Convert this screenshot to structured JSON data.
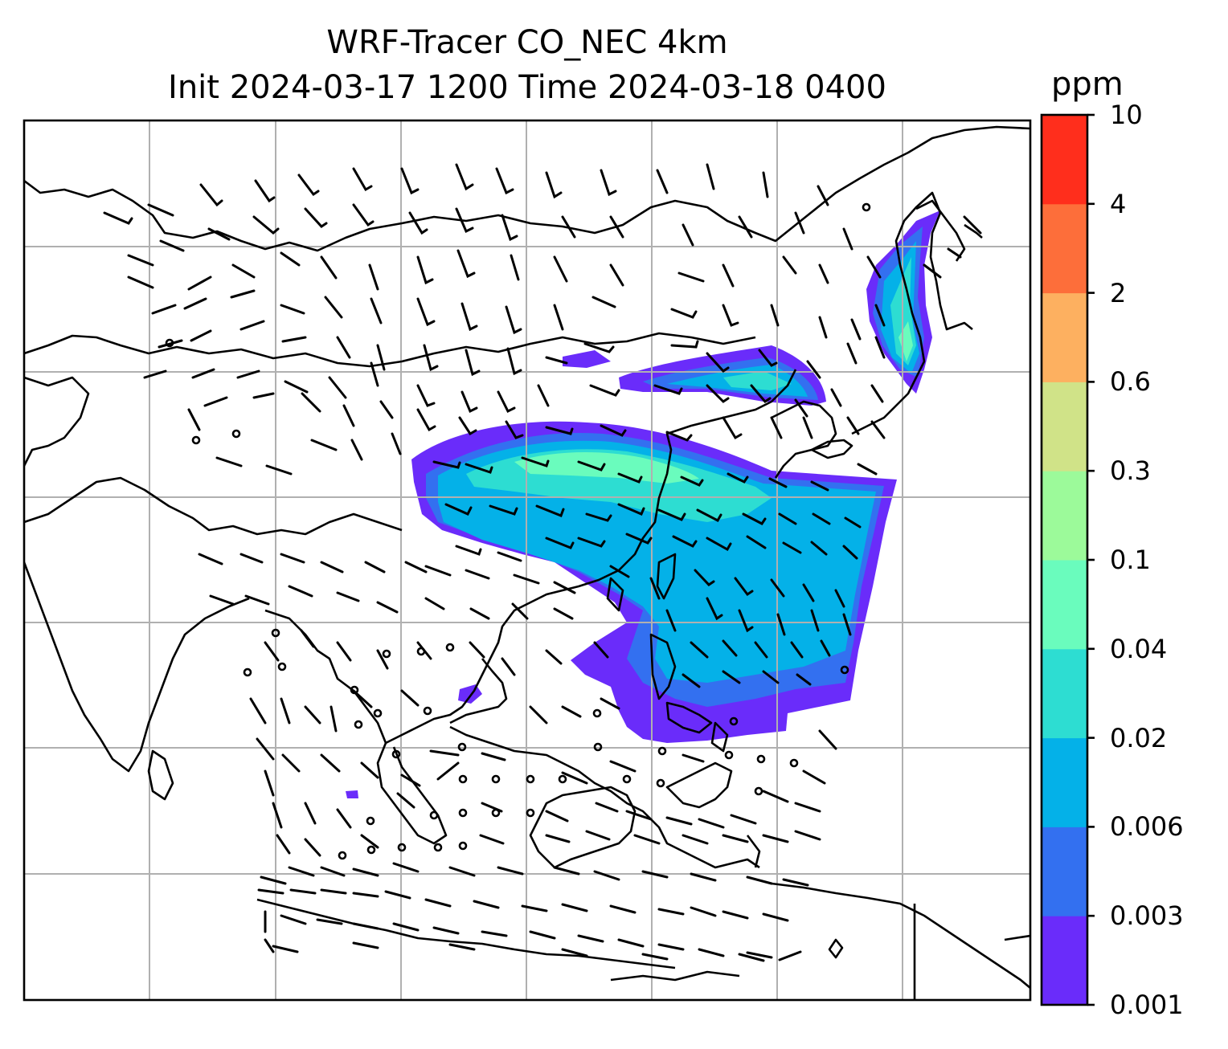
{
  "title": {
    "line1": "WRF-Tracer CO_NEC 4km",
    "line2": "Init 2024-03-17 1200 Time 2024-03-18 0400"
  },
  "colorbar": {
    "unit": "ppm",
    "ticks": [
      "10",
      "4",
      "2",
      "0.6",
      "0.3",
      "0.1",
      "0.04",
      "0.02",
      "0.006",
      "0.003",
      "0.001"
    ],
    "colors": [
      "#6a2cfa",
      "#3370f0",
      "#04b1e8",
      "#2dddd2",
      "#6afcbd",
      "#9cfa9a",
      "#d0e388",
      "#fdb060",
      "#fd6e3a",
      "#ff2e1c"
    ]
  },
  "map": {
    "gridlines": "on",
    "gridline_color": "#b0b0b0",
    "coastline_color": "#000000",
    "wind_barbs": "on"
  }
}
